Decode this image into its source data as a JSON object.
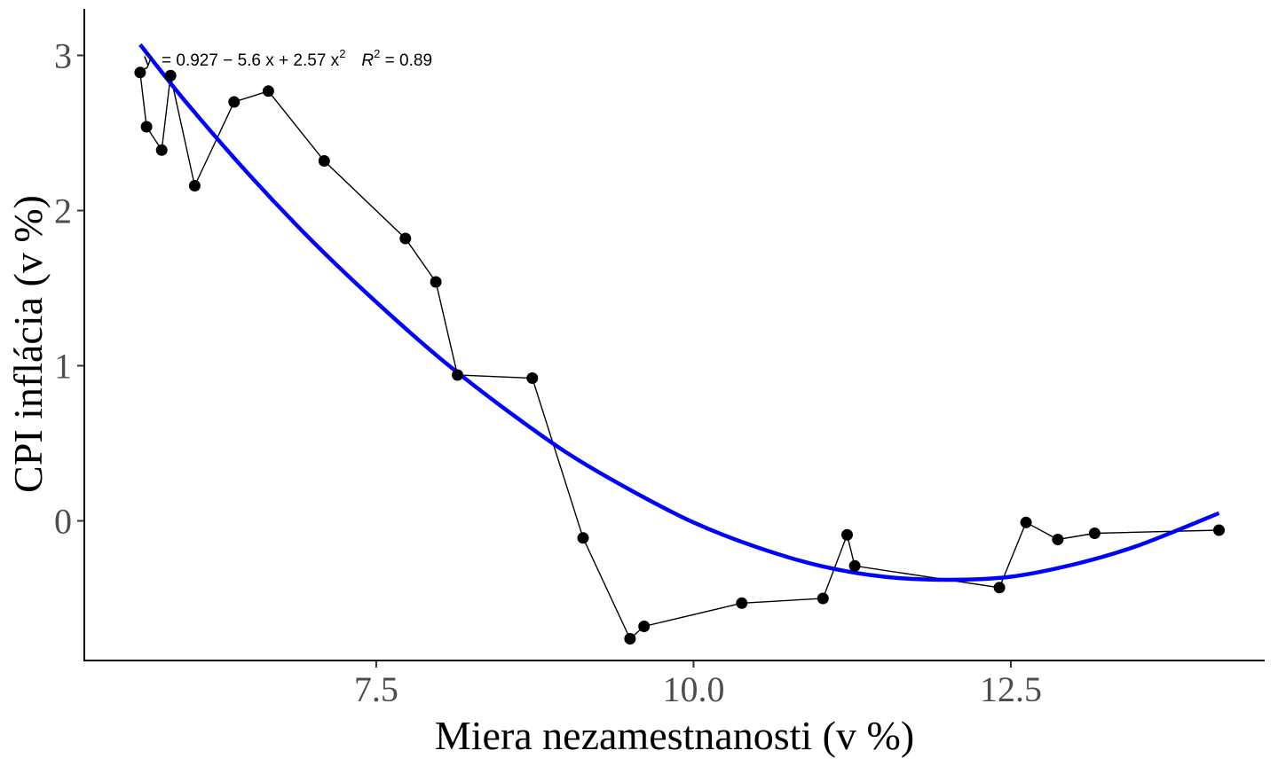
{
  "chart_data": {
    "type": "scatter",
    "title": "",
    "xlabel": "Miera nezamestnanosti (v %)",
    "ylabel": "CPI inflácia (v %)",
    "xlim": [
      5.2,
      14.5
    ],
    "ylim": [
      -0.9,
      3.3
    ],
    "x_ticks": [
      7.5,
      10.0,
      12.5
    ],
    "x_tick_labels": [
      "7.5",
      "10.0",
      "12.5"
    ],
    "y_ticks": [
      0,
      1,
      2,
      3
    ],
    "y_tick_labels": [
      "0",
      "1",
      "2",
      "3"
    ],
    "grid": false,
    "legend": "none",
    "equation_label": {
      "text": "= 0.927 − 5.6 x + 2.57 x",
      "exponent": "2",
      "r2_prefix": "R",
      "r2_suffix": " = 0.89"
    },
    "series": [
      {
        "style": "points-connected",
        "color": "#000000",
        "x": [
          5.64,
          5.69,
          5.81,
          5.88,
          6.07,
          6.38,
          6.65,
          7.09,
          7.73,
          7.97,
          8.14,
          8.73,
          9.13,
          9.5,
          9.61,
          10.38,
          11.02,
          11.21,
          11.27,
          12.41,
          12.62,
          12.87,
          13.16,
          14.14
        ],
        "y": [
          2.89,
          2.54,
          2.39,
          2.87,
          2.16,
          2.7,
          2.77,
          2.32,
          1.82,
          1.54,
          0.94,
          0.92,
          -0.11,
          -0.76,
          -0.68,
          -0.53,
          -0.5,
          -0.09,
          -0.29,
          -0.43,
          -0.01,
          -0.12,
          -0.08,
          -0.06
        ]
      },
      {
        "style": "polynomial-fit",
        "color": "#0000ff",
        "x_range": [
          5.64,
          14.14
        ],
        "x": [
          5.64,
          6.0,
          6.5,
          7.0,
          7.5,
          8.0,
          8.5,
          9.0,
          9.5,
          10.0,
          10.5,
          11.0,
          11.5,
          12.0,
          12.5,
          13.0,
          13.5,
          14.14
        ],
        "y": [
          3.07,
          2.7,
          2.23,
          1.8,
          1.41,
          1.05,
          0.73,
          0.44,
          0.2,
          -0.01,
          -0.17,
          -0.29,
          -0.36,
          -0.38,
          -0.36,
          -0.28,
          -0.16,
          0.05
        ]
      }
    ]
  }
}
